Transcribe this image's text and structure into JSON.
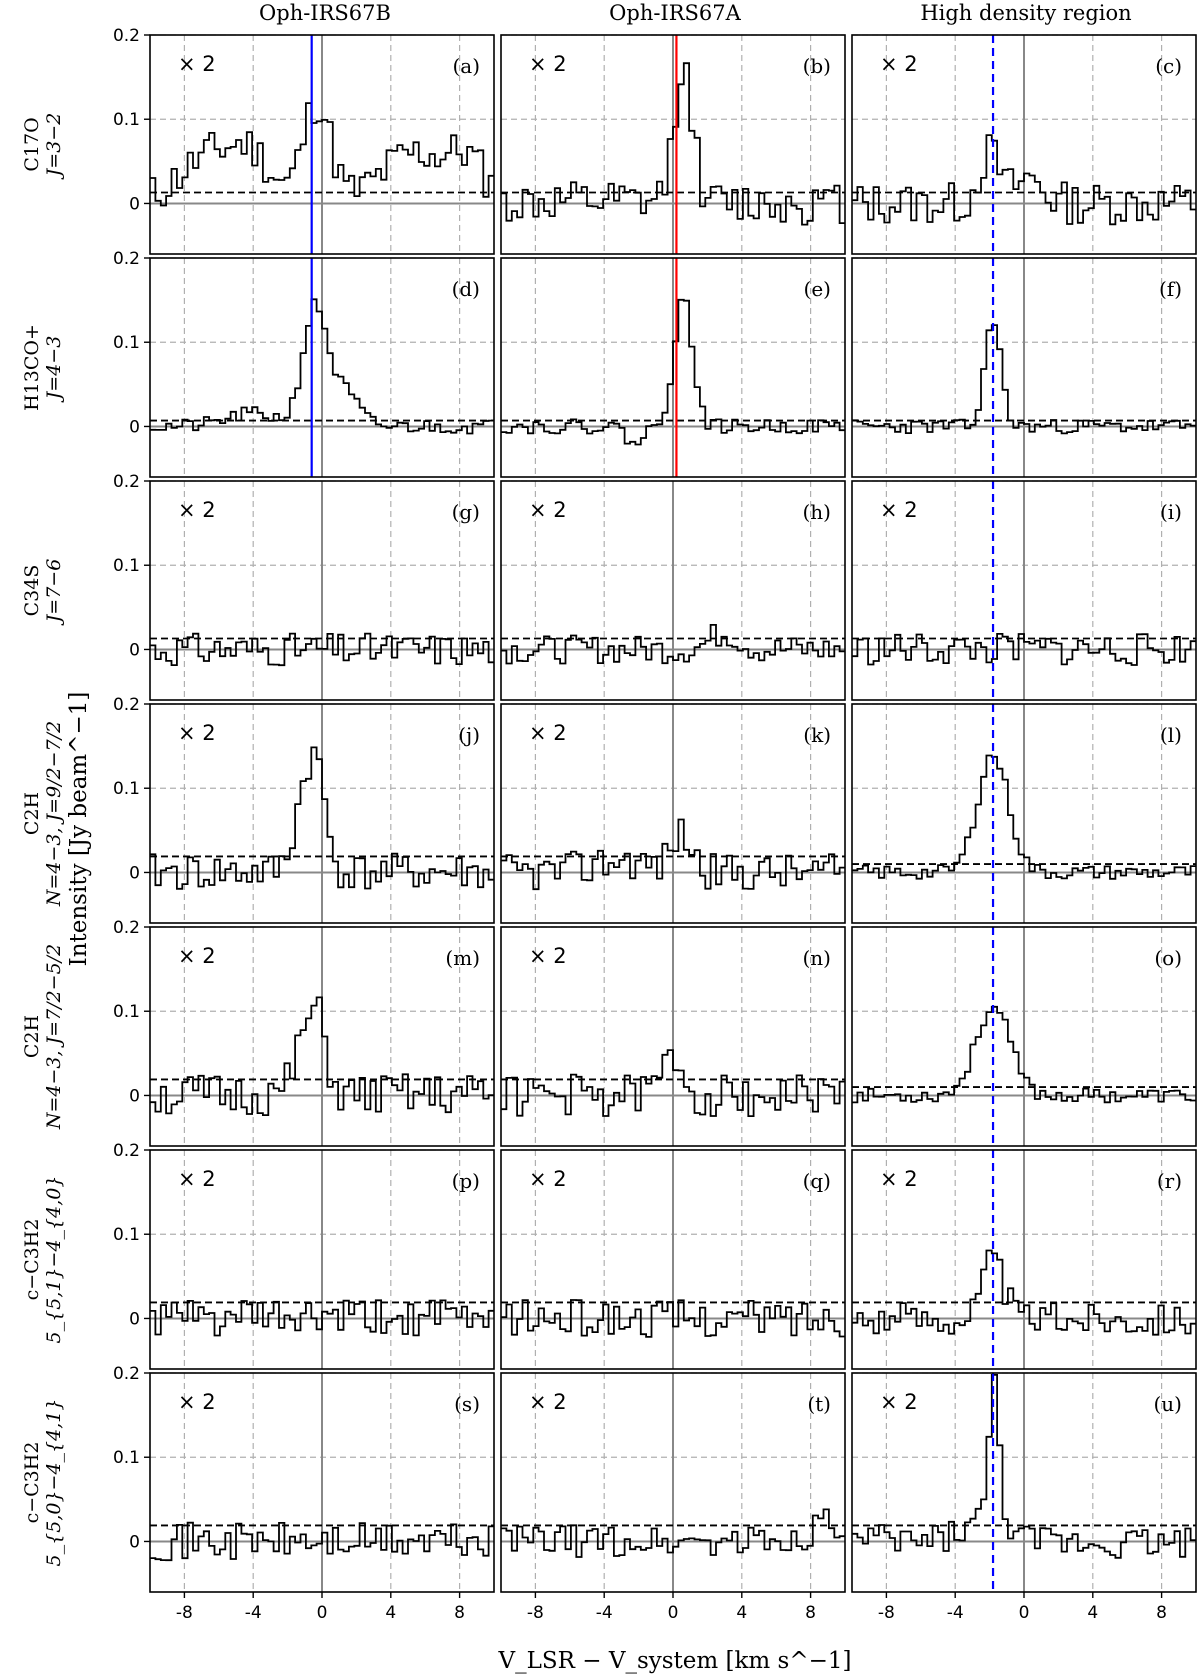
{
  "figure": {
    "column_titles": [
      "Oph-IRS67B",
      "Oph-IRS67A",
      "High density region"
    ],
    "row_labels": [
      {
        "top": "C17O",
        "bottom": "J=3−2"
      },
      {
        "top": "H13CO+",
        "bottom": "J=4−3"
      },
      {
        "top": "C34S",
        "bottom": "J=7−6"
      },
      {
        "top": "C2H",
        "bottom": "N=4−3, J=9/2−7/2"
      },
      {
        "top": "C2H",
        "bottom": "N=4−3, J=7/2−5/2"
      },
      {
        "top": "c−C3H2",
        "bottom": "5_{5,1}−4_{4,0}"
      },
      {
        "top": "c−C3H2",
        "bottom": "5_{5,0}−4_{4,1}"
      }
    ],
    "xlabel": "V_LSR − V_system [km s^−1]",
    "ylabel": "Intensity [Jy beam^−1]",
    "multiplier_label": "× 2"
  },
  "chart_data": {
    "type": "line",
    "xlim": [
      -10,
      10
    ],
    "ylim": [
      -0.06,
      0.2
    ],
    "xticks": [
      -8,
      -4,
      0,
      4,
      8
    ],
    "xtick_labels": [
      "-8",
      "-4",
      "0",
      "4",
      "8"
    ],
    "yticks": [
      0,
      0.1,
      0.2
    ],
    "ytick_labels": [
      "0",
      "0.1",
      "0.2"
    ],
    "grid": true,
    "drawstyle": "steps",
    "vsys_marker_x": 0,
    "source_velocity_markers": [
      {
        "column": 0,
        "x": -0.6,
        "color": "#0000ff",
        "style": "solid"
      },
      {
        "column": 1,
        "x": 0.2,
        "color": "#ff0000",
        "style": "solid"
      },
      {
        "column": 2,
        "x": -1.8,
        "color": "#0000ff",
        "style": "dashed"
      }
    ],
    "panels": [
      {
        "label": "(a)",
        "row": 0,
        "col": 0,
        "scaled": true,
        "noise_level": 0.013,
        "features": [
          [
            -6.5,
            0.055,
            1.8
          ],
          [
            -4.0,
            0.045,
            1.2
          ],
          [
            -0.3,
            0.12,
            0.8
          ],
          [
            5.5,
            0.06,
            2.0
          ],
          [
            8.5,
            0.04,
            1.0
          ]
        ],
        "noise": 0.018,
        "seed": 11
      },
      {
        "label": "(b)",
        "row": 0,
        "col": 1,
        "scaled": true,
        "noise_level": 0.013,
        "features": [
          [
            0.6,
            0.16,
            0.55
          ]
        ],
        "noise": 0.018,
        "seed": 12
      },
      {
        "label": "(c)",
        "row": 0,
        "col": 2,
        "scaled": true,
        "noise_level": 0.013,
        "features": [
          [
            -2.0,
            0.06,
            0.6
          ],
          [
            0.3,
            0.03,
            0.8
          ]
        ],
        "noise": 0.018,
        "seed": 13
      },
      {
        "label": "(d)",
        "row": 1,
        "col": 0,
        "scaled": false,
        "noise_level": 0.007,
        "features": [
          [
            -0.4,
            0.14,
            0.7
          ],
          [
            -4.0,
            0.015,
            1.5
          ],
          [
            1.3,
            0.04,
            0.8
          ]
        ],
        "noise": 0.006,
        "seed": 21
      },
      {
        "label": "(e)",
        "row": 1,
        "col": 1,
        "scaled": false,
        "noise_level": 0.007,
        "features": [
          [
            0.6,
            0.15,
            0.55
          ],
          [
            -2.2,
            -0.02,
            0.5
          ]
        ],
        "noise": 0.006,
        "seed": 22
      },
      {
        "label": "(f)",
        "row": 1,
        "col": 2,
        "scaled": false,
        "noise_level": 0.007,
        "features": [
          [
            -1.8,
            0.13,
            0.45
          ]
        ],
        "noise": 0.006,
        "seed": 23
      },
      {
        "label": "(g)",
        "row": 2,
        "col": 0,
        "scaled": true,
        "noise_level": 0.013,
        "features": [],
        "noise": 0.014,
        "seed": 31
      },
      {
        "label": "(h)",
        "row": 2,
        "col": 1,
        "scaled": true,
        "noise_level": 0.013,
        "features": [
          [
            3.0,
            0.02,
            0.8
          ]
        ],
        "noise": 0.012,
        "seed": 32
      },
      {
        "label": "(i)",
        "row": 2,
        "col": 2,
        "scaled": true,
        "noise_level": 0.013,
        "features": [],
        "noise": 0.014,
        "seed": 33
      },
      {
        "label": "(j)",
        "row": 3,
        "col": 0,
        "scaled": true,
        "noise_level": 0.019,
        "features": [
          [
            -1.0,
            0.09,
            0.6
          ],
          [
            -0.2,
            0.09,
            0.5
          ]
        ],
        "noise": 0.016,
        "seed": 41
      },
      {
        "label": "(k)",
        "row": 3,
        "col": 1,
        "scaled": true,
        "noise_level": 0.019,
        "features": [
          [
            -3.0,
            0.015,
            1.5
          ],
          [
            0.5,
            0.045,
            0.6
          ]
        ],
        "noise": 0.016,
        "seed": 42
      },
      {
        "label": "(l)",
        "row": 3,
        "col": 2,
        "scaled": false,
        "noise_level": 0.01,
        "features": [
          [
            -1.8,
            0.14,
            0.9
          ]
        ],
        "noise": 0.006,
        "seed": 43
      },
      {
        "label": "(m)",
        "row": 4,
        "col": 0,
        "scaled": true,
        "noise_level": 0.019,
        "features": [
          [
            -1.0,
            0.06,
            0.6
          ],
          [
            -0.2,
            0.07,
            0.5
          ]
        ],
        "noise": 0.018,
        "seed": 51
      },
      {
        "label": "(n)",
        "row": 4,
        "col": 1,
        "scaled": true,
        "noise_level": 0.019,
        "features": [
          [
            0.0,
            0.045,
            0.6
          ]
        ],
        "noise": 0.018,
        "seed": 52
      },
      {
        "label": "(o)",
        "row": 4,
        "col": 2,
        "scaled": false,
        "noise_level": 0.01,
        "features": [
          [
            -1.8,
            0.105,
            1.0
          ]
        ],
        "noise": 0.006,
        "seed": 53
      },
      {
        "label": "(p)",
        "row": 5,
        "col": 0,
        "scaled": true,
        "noise_level": 0.019,
        "features": [],
        "noise": 0.016,
        "seed": 61
      },
      {
        "label": "(q)",
        "row": 5,
        "col": 1,
        "scaled": true,
        "noise_level": 0.019,
        "features": [],
        "noise": 0.016,
        "seed": 62
      },
      {
        "label": "(r)",
        "row": 5,
        "col": 2,
        "scaled": true,
        "noise_level": 0.019,
        "features": [
          [
            -1.8,
            0.07,
            0.6
          ]
        ],
        "noise": 0.014,
        "seed": 63
      },
      {
        "label": "(s)",
        "row": 6,
        "col": 0,
        "scaled": true,
        "noise_level": 0.019,
        "features": [],
        "noise": 0.016,
        "seed": 71
      },
      {
        "label": "(t)",
        "row": 6,
        "col": 1,
        "scaled": true,
        "noise_level": 0.019,
        "features": [
          [
            9.0,
            0.03,
            0.8
          ]
        ],
        "noise": 0.014,
        "seed": 72
      },
      {
        "label": "(u)",
        "row": 6,
        "col": 2,
        "scaled": true,
        "noise_level": 0.019,
        "features": [
          [
            -1.7,
            0.175,
            0.35
          ],
          [
            -3.0,
            0.02,
            1.0
          ]
        ],
        "noise": 0.014,
        "seed": 73
      }
    ]
  }
}
